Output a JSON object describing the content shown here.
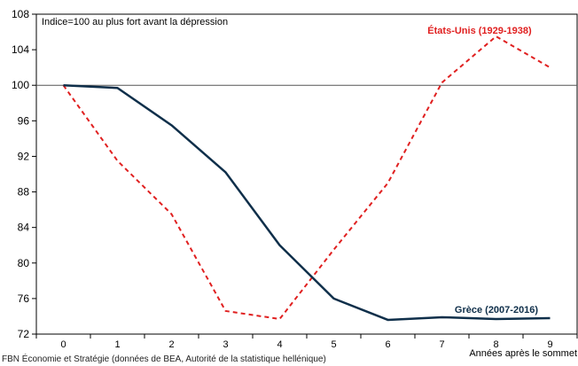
{
  "chart_data": {
    "type": "line",
    "annotation": "Indice=100 au plus fort avant la dépression",
    "xlabel": "Années après le sommet",
    "ylabel": "",
    "x": [
      0,
      1,
      2,
      3,
      4,
      5,
      6,
      7,
      8,
      9
    ],
    "xlim": [
      -0.5,
      9.5
    ],
    "ylim": [
      72,
      108
    ],
    "yticks": [
      72,
      76,
      80,
      84,
      88,
      92,
      96,
      100,
      104,
      108
    ],
    "reference_line": 100,
    "grid": false,
    "series": [
      {
        "name": "États-Unis (1929-1938)",
        "color": "#e02020",
        "dash": "dashed",
        "values": [
          100,
          91.5,
          85.5,
          74.6,
          73.7,
          81.5,
          89,
          100.3,
          105.5,
          102
        ]
      },
      {
        "name": "Grèce (2007-2016)",
        "color": "#0f2f4a",
        "dash": "solid",
        "values": [
          100,
          99.7,
          95.5,
          90.2,
          82,
          76,
          73.6,
          73.9,
          73.7,
          73.8
        ]
      }
    ]
  },
  "source": "FBN Économie et Stratégie (données de BEA, Autorité de la statistique hellénique)"
}
